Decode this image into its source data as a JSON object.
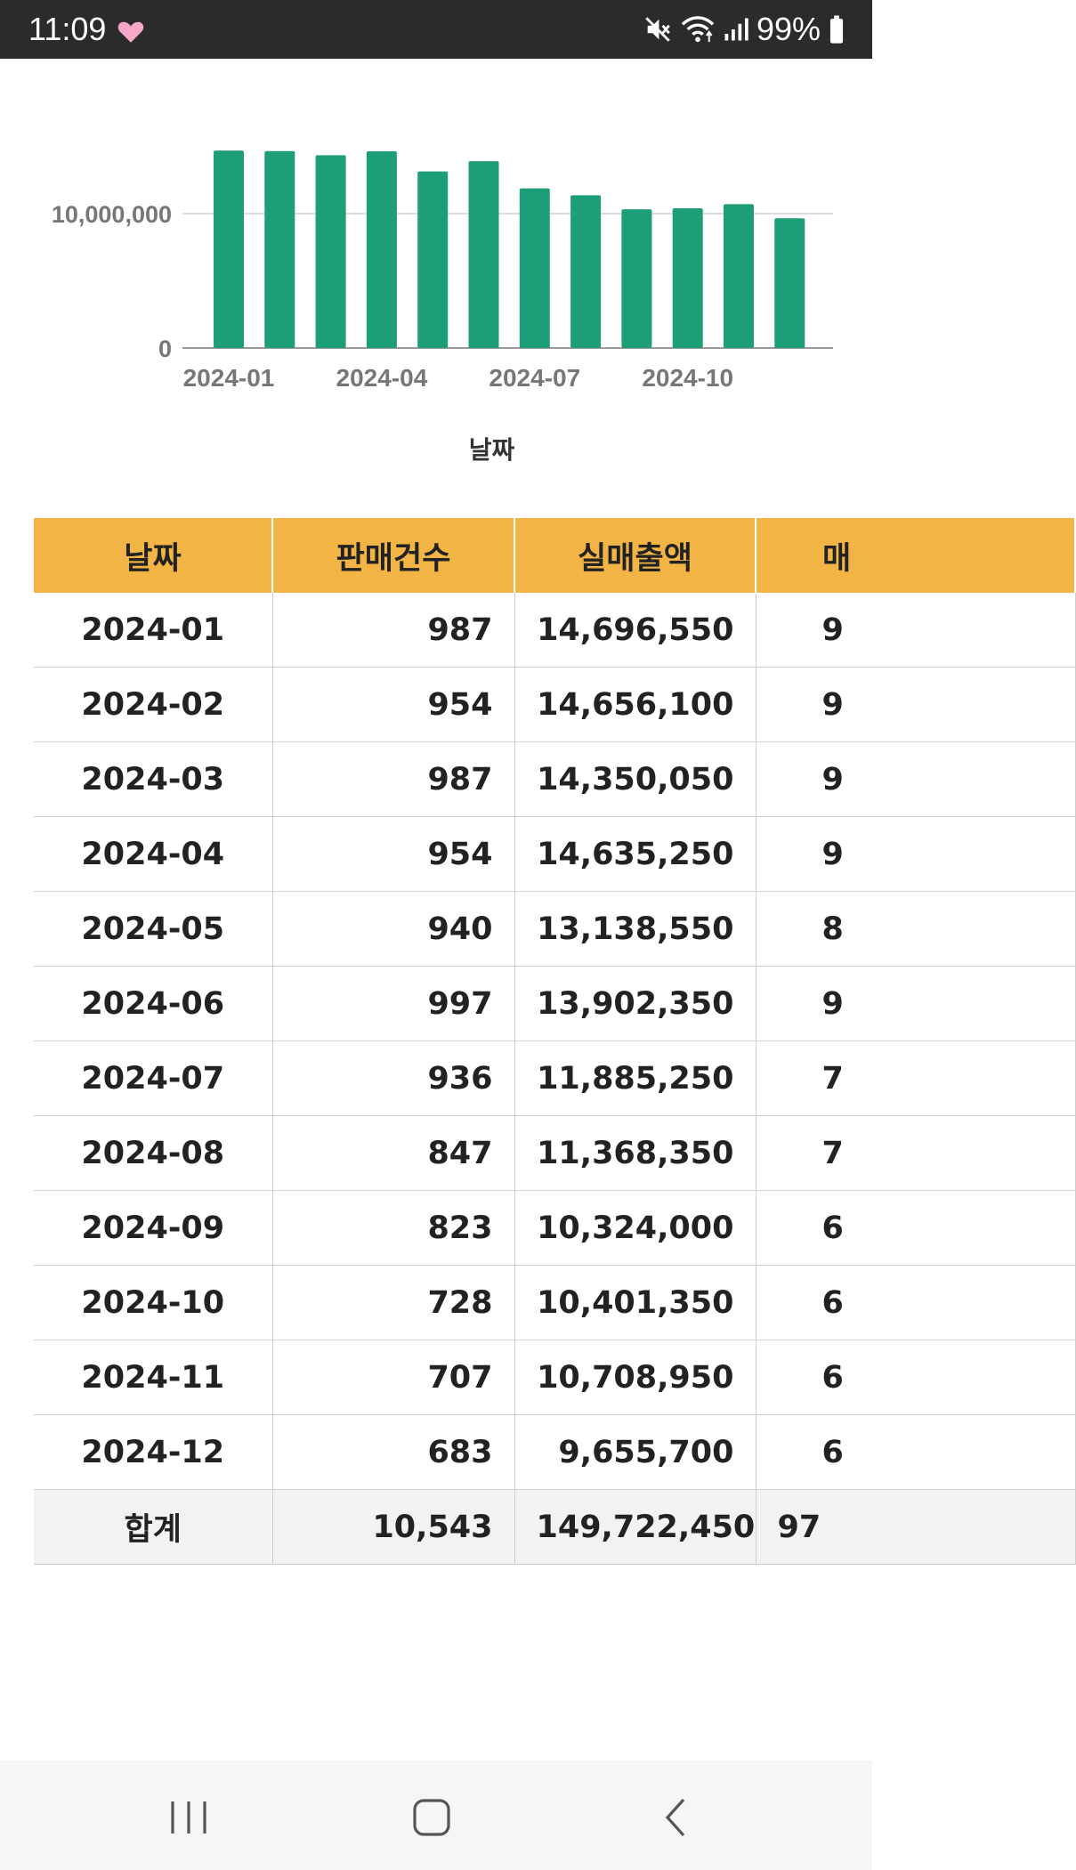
{
  "status_bar": {
    "time": "11:09",
    "battery": "99%",
    "icons": [
      "heart-icon",
      "mute-icon",
      "wifi-icon",
      "signal-icon",
      "battery-icon"
    ]
  },
  "chart_data": {
    "type": "bar",
    "categories": [
      "2024-01",
      "2024-02",
      "2024-03",
      "2024-04",
      "2024-05",
      "2024-06",
      "2024-07",
      "2024-08",
      "2024-09",
      "2024-10",
      "2024-11",
      "2024-12"
    ],
    "values": [
      14696550,
      14656100,
      14350050,
      14635250,
      13138550,
      13902350,
      11885250,
      11368350,
      10324000,
      10401350,
      10708950,
      9655700
    ],
    "x_tick_labels": [
      "2024-01",
      "2024-04",
      "2024-07",
      "2024-10"
    ],
    "y_tick_labels": [
      "0",
      "10,000,000"
    ],
    "xlabel": "날짜",
    "ylim": [
      0,
      15500000
    ],
    "color": "#1e9e78",
    "grid": true
  },
  "table": {
    "headers": [
      "날짜",
      "판매건수",
      "실매출액",
      "매"
    ],
    "rows": [
      {
        "date": "2024-01",
        "count": "987",
        "sales": "14,696,550",
        "col4": "9"
      },
      {
        "date": "2024-02",
        "count": "954",
        "sales": "14,656,100",
        "col4": "9"
      },
      {
        "date": "2024-03",
        "count": "987",
        "sales": "14,350,050",
        "col4": "9"
      },
      {
        "date": "2024-04",
        "count": "954",
        "sales": "14,635,250",
        "col4": "9"
      },
      {
        "date": "2024-05",
        "count": "940",
        "sales": "13,138,550",
        "col4": "8"
      },
      {
        "date": "2024-06",
        "count": "997",
        "sales": "13,902,350",
        "col4": "9"
      },
      {
        "date": "2024-07",
        "count": "936",
        "sales": "11,885,250",
        "col4": "7"
      },
      {
        "date": "2024-08",
        "count": "847",
        "sales": "11,368,350",
        "col4": "7"
      },
      {
        "date": "2024-09",
        "count": "823",
        "sales": "10,324,000",
        "col4": "6"
      },
      {
        "date": "2024-10",
        "count": "728",
        "sales": "10,401,350",
        "col4": "6"
      },
      {
        "date": "2024-11",
        "count": "707",
        "sales": "10,708,950",
        "col4": "6"
      },
      {
        "date": "2024-12",
        "count": "683",
        "sales": "9,655,700",
        "col4": "6"
      }
    ],
    "total": {
      "label": "합계",
      "count": "10,543",
      "sales": "149,722,450",
      "col4": "97"
    },
    "header_color": "#f2b545"
  },
  "nav_bar": {
    "icons": [
      "recent-apps-icon",
      "home-icon",
      "back-icon"
    ]
  }
}
